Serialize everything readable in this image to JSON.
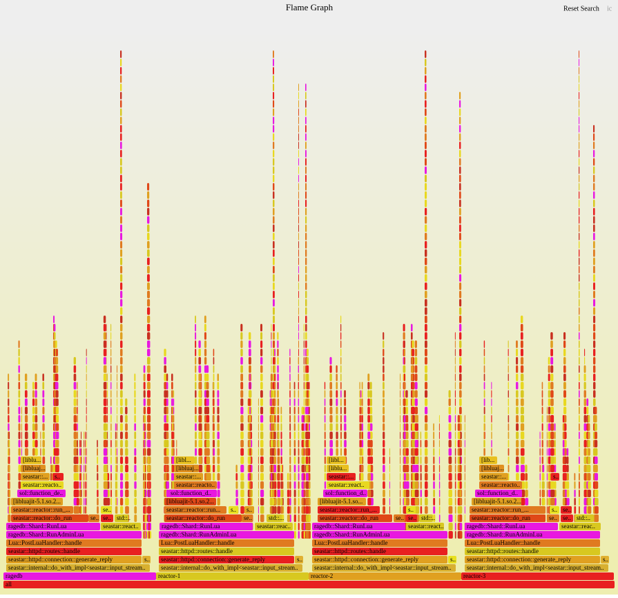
{
  "header": {
    "title": "Flame Graph",
    "reset": "Reset Search",
    "corner": "ic"
  },
  "frames": [
    {
      "label": "all"
    },
    {
      "label": "ragedb"
    },
    {
      "label": "reactor-1"
    },
    {
      "label": "reactor-2"
    },
    {
      "label": "reactor-3"
    },
    {
      "label": "seastar::internal::do_with_impl<seastar::input_stream.."
    },
    {
      "label": "seastar::httpd::connection::generate_reply"
    },
    {
      "label": "s.."
    },
    {
      "label": "seastar::httpd::routes::handle"
    },
    {
      "label": "Lua::PostLuaHandler::handle"
    },
    {
      "label": "ragedb::Shard::RunAdminLua"
    },
    {
      "label": "ragedb::Shard::RunLua"
    },
    {
      "label": "seastar::react.."
    },
    {
      "label": "seastar::reactor::do_run"
    },
    {
      "label": "se.."
    },
    {
      "label": "se.."
    },
    {
      "label": "std::.."
    },
    {
      "label": "seastar::reactor::run_..."
    },
    {
      "label": "se.."
    },
    {
      "label": "[libluajit-5.1.so.2..."
    },
    {
      "label": "sol::function_de.."
    },
    {
      "label": "seastar::reacto.."
    },
    {
      "label": "seastar::..."
    },
    {
      "label": "s.."
    },
    {
      "label": "[libluaj..."
    },
    {
      "label": "[liblu..."
    },
    {
      "label": "seastar::internal::do_with_impl<seastar::input_stream.."
    },
    {
      "label": "seastar::httpd::connection::generate_reply"
    },
    {
      "label": "s.."
    },
    {
      "label": "seastar::httpd::routes::handle"
    },
    {
      "label": "Lua::PostLuaHandler::handle"
    },
    {
      "label": "ragedb::Shard::RunAdminLua"
    },
    {
      "label": "ragedb::Shard::RunLua"
    },
    {
      "label": "seastar::reac.."
    },
    {
      "label": "seastar::reactor::do_run"
    },
    {
      "label": "se.."
    },
    {
      "label": "std::..."
    },
    {
      "label": "seastar::reactor::run..."
    },
    {
      "label": "s.."
    },
    {
      "label": "s.."
    },
    {
      "label": "[libluajit-5.1.so.2..."
    },
    {
      "label": "sol::function_d.."
    },
    {
      "label": "seastar::reacto.."
    },
    {
      "label": "seastar::..."
    },
    {
      "label": "[libluaj..."
    },
    {
      "label": "[libl..."
    },
    {
      "label": "seastar::internal::do_with_impl<seastar::input_stream.."
    },
    {
      "label": "seastar::httpd::connection::generate_reply"
    },
    {
      "label": "s.."
    },
    {
      "label": "seastar::httpd::routes::handle"
    },
    {
      "label": "Lua::PostLuaHandler::handle"
    },
    {
      "label": "ragedb::Shard::RunAdminLua"
    },
    {
      "label": "ragedb::Shard::RunLua"
    },
    {
      "label": "seastar::react.."
    },
    {
      "label": "seastar::reactor::do_run"
    },
    {
      "label": "se.."
    },
    {
      "label": "se.."
    },
    {
      "label": "std::.."
    },
    {
      "label": "seastar::reactor::run_..."
    },
    {
      "label": "s.."
    },
    {
      "label": "[libluajit-5.1.so..."
    },
    {
      "label": "sol::function_d.."
    },
    {
      "label": "seastar::react.."
    },
    {
      "label": "seastar::..."
    },
    {
      "label": "[liblu..."
    },
    {
      "label": "[libl..."
    },
    {
      "label": "seastar::internal::do_with_impl<seastar::input_stream.."
    },
    {
      "label": "seastar::httpd::connection::generate_reply"
    },
    {
      "label": "s.."
    },
    {
      "label": "seastar::httpd::routes::handle"
    },
    {
      "label": "Lua::PostLuaHandler::handle"
    },
    {
      "label": "ragedb::Shard::RunAdminLua"
    },
    {
      "label": "ragedb::Shard::RunLua"
    },
    {
      "label": "seastar::reac.."
    },
    {
      "label": "seastar::reactor::do_run"
    },
    {
      "label": "se.."
    },
    {
      "label": "se.."
    },
    {
      "label": "std::.."
    },
    {
      "label": "seastar::reactor::run_..."
    },
    {
      "label": "s.."
    },
    {
      "label": "se.."
    },
    {
      "label": "[libluajit-5.1.so.2..."
    },
    {
      "label": "sol::function_d.."
    },
    {
      "label": "seastar::reacto.."
    },
    {
      "label": "seastar::..."
    },
    {
      "label": "s.."
    },
    {
      "label": "[libluaj..."
    },
    {
      "label": "[lib..."
    }
  ]
}
